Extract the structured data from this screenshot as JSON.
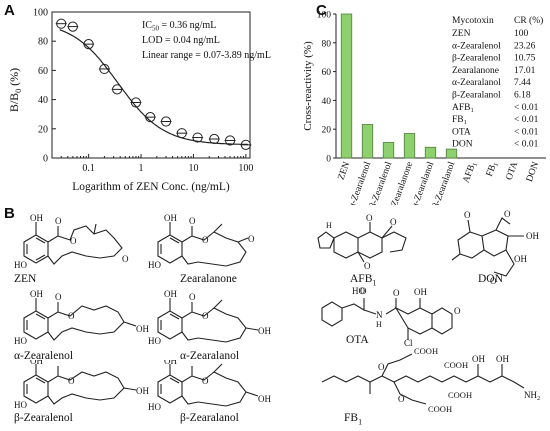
{
  "panels": {
    "a": "A",
    "b": "B",
    "c": "C"
  },
  "chart_data": [
    {
      "type": "scatter",
      "panel": "A",
      "xlabel": "Logarithm of ZEN Conc. (ng/mL)",
      "ylabel_main": "B/B",
      "ylabel_sub": "0",
      "ylabel_unit": " (%)",
      "x_scale": "log",
      "xlim": [
        0.02,
        120
      ],
      "ylim": [
        0,
        100
      ],
      "x_ticks": [
        0.1,
        1,
        10,
        100
      ],
      "x_tick_labels": [
        "0.1",
        "1",
        "10",
        "100"
      ],
      "y_ticks": [
        0,
        20,
        40,
        60,
        80,
        100
      ],
      "y_tick_labels": [
        "0",
        "20",
        "40",
        "60",
        "80",
        "100"
      ],
      "points": [
        {
          "x": 0.03,
          "y": 92
        },
        {
          "x": 0.05,
          "y": 90
        },
        {
          "x": 0.1,
          "y": 78
        },
        {
          "x": 0.2,
          "y": 61
        },
        {
          "x": 0.35,
          "y": 47
        },
        {
          "x": 0.8,
          "y": 38
        },
        {
          "x": 1.5,
          "y": 28
        },
        {
          "x": 3,
          "y": 25
        },
        {
          "x": 6,
          "y": 17
        },
        {
          "x": 12,
          "y": 14
        },
        {
          "x": 25,
          "y": 13
        },
        {
          "x": 50,
          "y": 12
        },
        {
          "x": 100,
          "y": 9
        }
      ],
      "fit_curve": {
        "top": 94,
        "bottom": 9,
        "ic50": 0.36,
        "hill": 1.0
      },
      "annotations": [
        {
          "main": "IC",
          "sub": "50",
          "rest": " = 0.36 ng/mL"
        },
        {
          "main": "LOD = 0.04 ng/mL",
          "sub": "",
          "rest": ""
        },
        {
          "main": "Linear range = 0.07-3.89 ng/mL",
          "sub": "",
          "rest": ""
        }
      ]
    },
    {
      "type": "bar",
      "panel": "C",
      "ylabel": "Cross-reactivity (%)",
      "ylim": [
        0,
        100
      ],
      "y_ticks": [
        0,
        20,
        40,
        60,
        80,
        100
      ],
      "y_tick_labels": [
        "0",
        "20",
        "40",
        "60",
        "80",
        "100"
      ],
      "categories": [
        {
          "main": "ZEN",
          "sub": ""
        },
        {
          "main": "α-Zearalenol",
          "sub": ""
        },
        {
          "main": "β-Zearalenol",
          "sub": ""
        },
        {
          "main": "Zearalanone",
          "sub": ""
        },
        {
          "main": "α-Zearalanol",
          "sub": ""
        },
        {
          "main": "β-Zearalanol",
          "sub": ""
        },
        {
          "main": "AFB",
          "sub": "1"
        },
        {
          "main": "FB",
          "sub": "1"
        },
        {
          "main": "OTA",
          "sub": ""
        },
        {
          "main": "DON",
          "sub": ""
        }
      ],
      "values": [
        100,
        23.26,
        10.75,
        17.01,
        7.44,
        6.18,
        0,
        0,
        0,
        0
      ],
      "bar_color": "#8ecf6e",
      "bar_edge": "#4f7f3a",
      "table": {
        "header": [
          "Mycotoxin",
          "CR (%)"
        ],
        "rows": [
          {
            "name": "ZEN",
            "sub": "",
            "cr": "100"
          },
          {
            "name": "α-Zearalenol",
            "sub": "",
            "cr": "23.26"
          },
          {
            "name": "β-Zearalenol",
            "sub": "",
            "cr": "10.75"
          },
          {
            "name": "Zearalanone",
            "sub": "",
            "cr": "17.01"
          },
          {
            "name": "α-Zearalanol",
            "sub": "",
            "cr": "7.44"
          },
          {
            "name": "β-Zearalanol",
            "sub": "",
            "cr": "6.18"
          },
          {
            "name": "AFB",
            "sub": "1",
            "cr": "< 0.01"
          },
          {
            "name": "FB",
            "sub": "1",
            "cr": "< 0.01"
          },
          {
            "name": "OTA",
            "sub": "",
            "cr": "< 0.01"
          },
          {
            "name": "DON",
            "sub": "",
            "cr": "< 0.01"
          }
        ]
      }
    }
  ],
  "structures": [
    {
      "id": "zen",
      "main": "ZEN",
      "sub": ""
    },
    {
      "id": "zearalanone",
      "main": "Zearalanone",
      "sub": ""
    },
    {
      "id": "afb1",
      "main": "AFB",
      "sub": "1"
    },
    {
      "id": "don",
      "main": "DON",
      "sub": ""
    },
    {
      "id": "a-zearalenol",
      "main": "α-Zearalenol",
      "sub": ""
    },
    {
      "id": "a-zearalanol",
      "main": "α-Zearalanol",
      "sub": ""
    },
    {
      "id": "ota",
      "main": "OTA",
      "sub": ""
    },
    {
      "id": "b-zearalenol",
      "main": "β-Zearalenol",
      "sub": ""
    },
    {
      "id": "b-zearalanol",
      "main": "β-Zearalanol",
      "sub": ""
    },
    {
      "id": "fb1",
      "main": "FB",
      "sub": "1"
    }
  ],
  "atom_labels": {
    "oh": "OH",
    "ho": "HO",
    "o": "O",
    "h": "H",
    "nh": "N",
    "cl": "Cl",
    "nh2": "NH",
    "nh2_sub": "2",
    "ome": "O",
    "cooh": "COOH"
  }
}
